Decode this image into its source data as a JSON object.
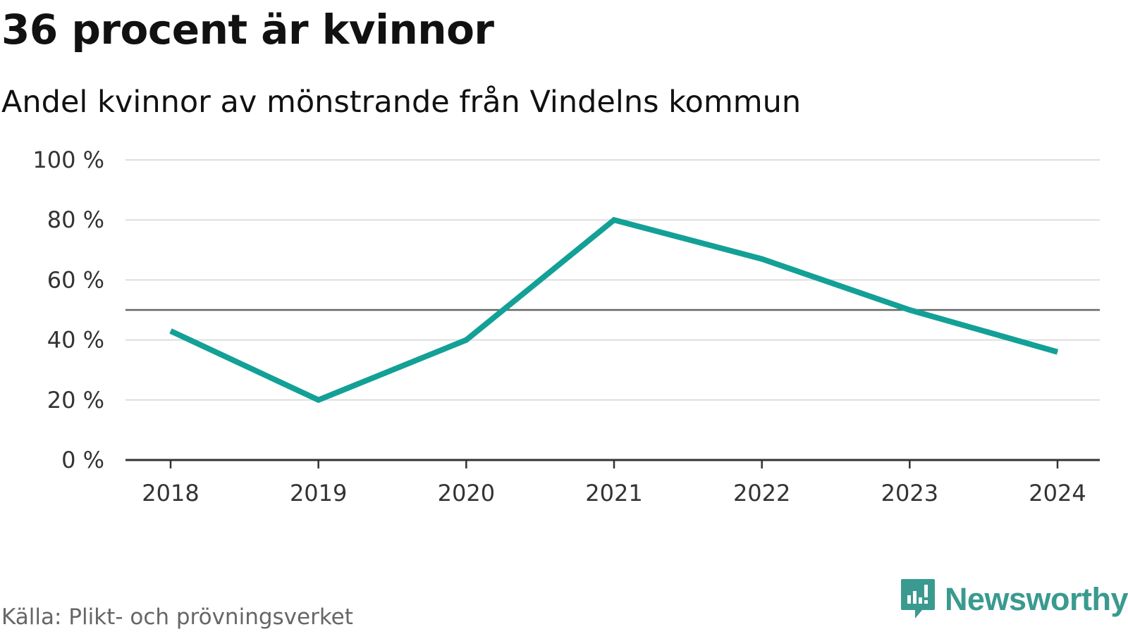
{
  "header": {
    "title": "36 procent är kvinnor",
    "subtitle": "Andel kvinnor av mönstrande från Vindelns kommun"
  },
  "footer": {
    "source": "Källa: Plikt- och prövningsverket",
    "brand": "Newsworthy"
  },
  "colors": {
    "line": "#13a096",
    "grid": "#dddddd",
    "reference": "#666666",
    "axis": "#333333",
    "brand": "#3a9a8f"
  },
  "chart_data": {
    "type": "line",
    "title": "36 procent är kvinnor",
    "subtitle": "Andel kvinnor av mönstrande från Vindelns kommun",
    "xlabel": "",
    "ylabel": "",
    "x": [
      "2018",
      "2019",
      "2020",
      "2021",
      "2022",
      "2023",
      "2024"
    ],
    "series": [
      {
        "values": [
          43,
          20,
          40,
          80,
          67,
          50,
          36
        ]
      }
    ],
    "ylim": [
      0,
      100
    ],
    "yticks": [
      0,
      20,
      40,
      60,
      80,
      100
    ],
    "ytick_labels": [
      "0 %",
      "20 %",
      "40 %",
      "60 %",
      "80 %",
      "100 %"
    ],
    "reference_line": 50,
    "grid": true,
    "legend": "none"
  }
}
